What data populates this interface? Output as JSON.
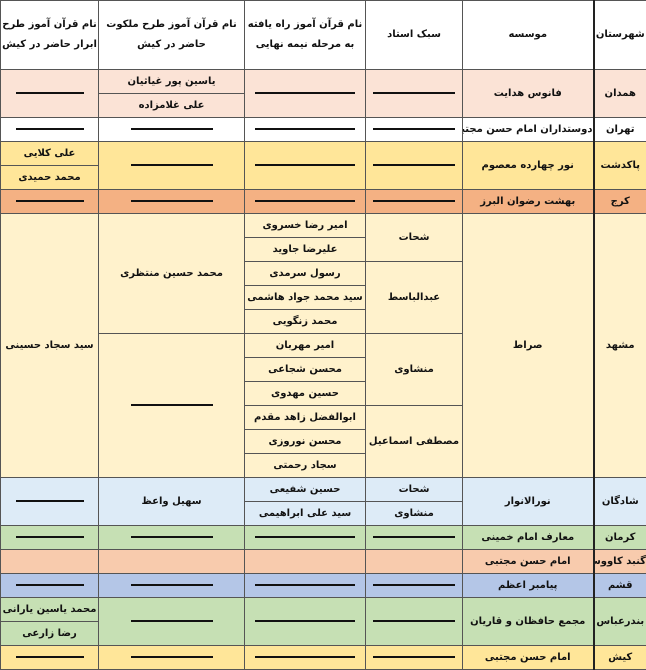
{
  "headers": [
    "شهرستان",
    "موسسه",
    "سبک استاد",
    "نام قرآن آموز راه یافته به مرحله نیمه نهایی",
    "نام قرآن آموز طرح ملکوت حاضر در کیش",
    "نام قرآن آموز طرح ابرار حاضر در کیش"
  ],
  "rows": {
    "hamedan": {
      "city": "همدان",
      "institute": "فانوس هدایت",
      "malakut": [
        "یاسین پور غیاثیان",
        "علی غلامزاده"
      ]
    },
    "tehran": {
      "city": "تهران",
      "institute": "دوستداران امام حسن مجتبی"
    },
    "pakdasht": {
      "city": "پاکدشت",
      "institute": "نور چهارده معصوم",
      "abrar": [
        "علی کلایی",
        "محمد حمیدی"
      ]
    },
    "karaj": {
      "city": "کرج",
      "institute": "بهشت رضوان البرز"
    },
    "mashhad": {
      "city": "مشهد",
      "institute": "صراط",
      "abrar": "سید سجاد حسینی",
      "malakut": "محمد حسین منتظری",
      "styles": [
        "شحات",
        "عبدالباسط",
        "منشاوی",
        "مصطفی اسماعیل"
      ],
      "semifinal": [
        "امیر رضا خسروی",
        "علیرضا جاوید",
        "رسول سرمدی",
        "سید محمد جواد هاشمی",
        "محمد زنگویی",
        "امیر مهربان",
        "محسن شجاعی",
        "حسین مهدوی",
        "ابوالفضل زاهد مقدم",
        "محسن نوروزی",
        "سجاد رحمتی"
      ]
    },
    "shadegan": {
      "city": "شادگان",
      "institute": "نورالانوار",
      "styles": [
        "شحات",
        "منشاوی"
      ],
      "semifinal": [
        "حسین شفیعی",
        "سید علی ابراهیمی"
      ],
      "malakut": "سهیل واعظ"
    },
    "kerman": {
      "city": "کرمان",
      "institute": "معارف امام خمینی"
    },
    "gonbad": {
      "city": "گنبد کاووس",
      "institute": "امام حسن مجتبی"
    },
    "qeshm": {
      "city": "قشم",
      "institute": "پیامبر اعظم"
    },
    "bandarabbas": {
      "city": "بندرعباس",
      "institute": "مجمع حافظان و قاریان",
      "abrar": [
        "محمد یاسین یارانی",
        "رضا زارعی"
      ]
    },
    "kish": {
      "city": "کیش",
      "institute": "امام حسن مجتبی"
    }
  },
  "row_colors": {
    "hamedan": "#fbe3d6",
    "tehran": "#ffffff",
    "pakdasht": "#ffe699",
    "karaj": "#f4b183",
    "mashhad": "#fff2cc",
    "shadegan": "#ddebf7",
    "kerman": "#c6e0b4",
    "gonbad": "#f8cbad",
    "qeshm": "#b4c6e7",
    "bandarabbas": "#c6e0b4",
    "kish": "#ffe699"
  }
}
